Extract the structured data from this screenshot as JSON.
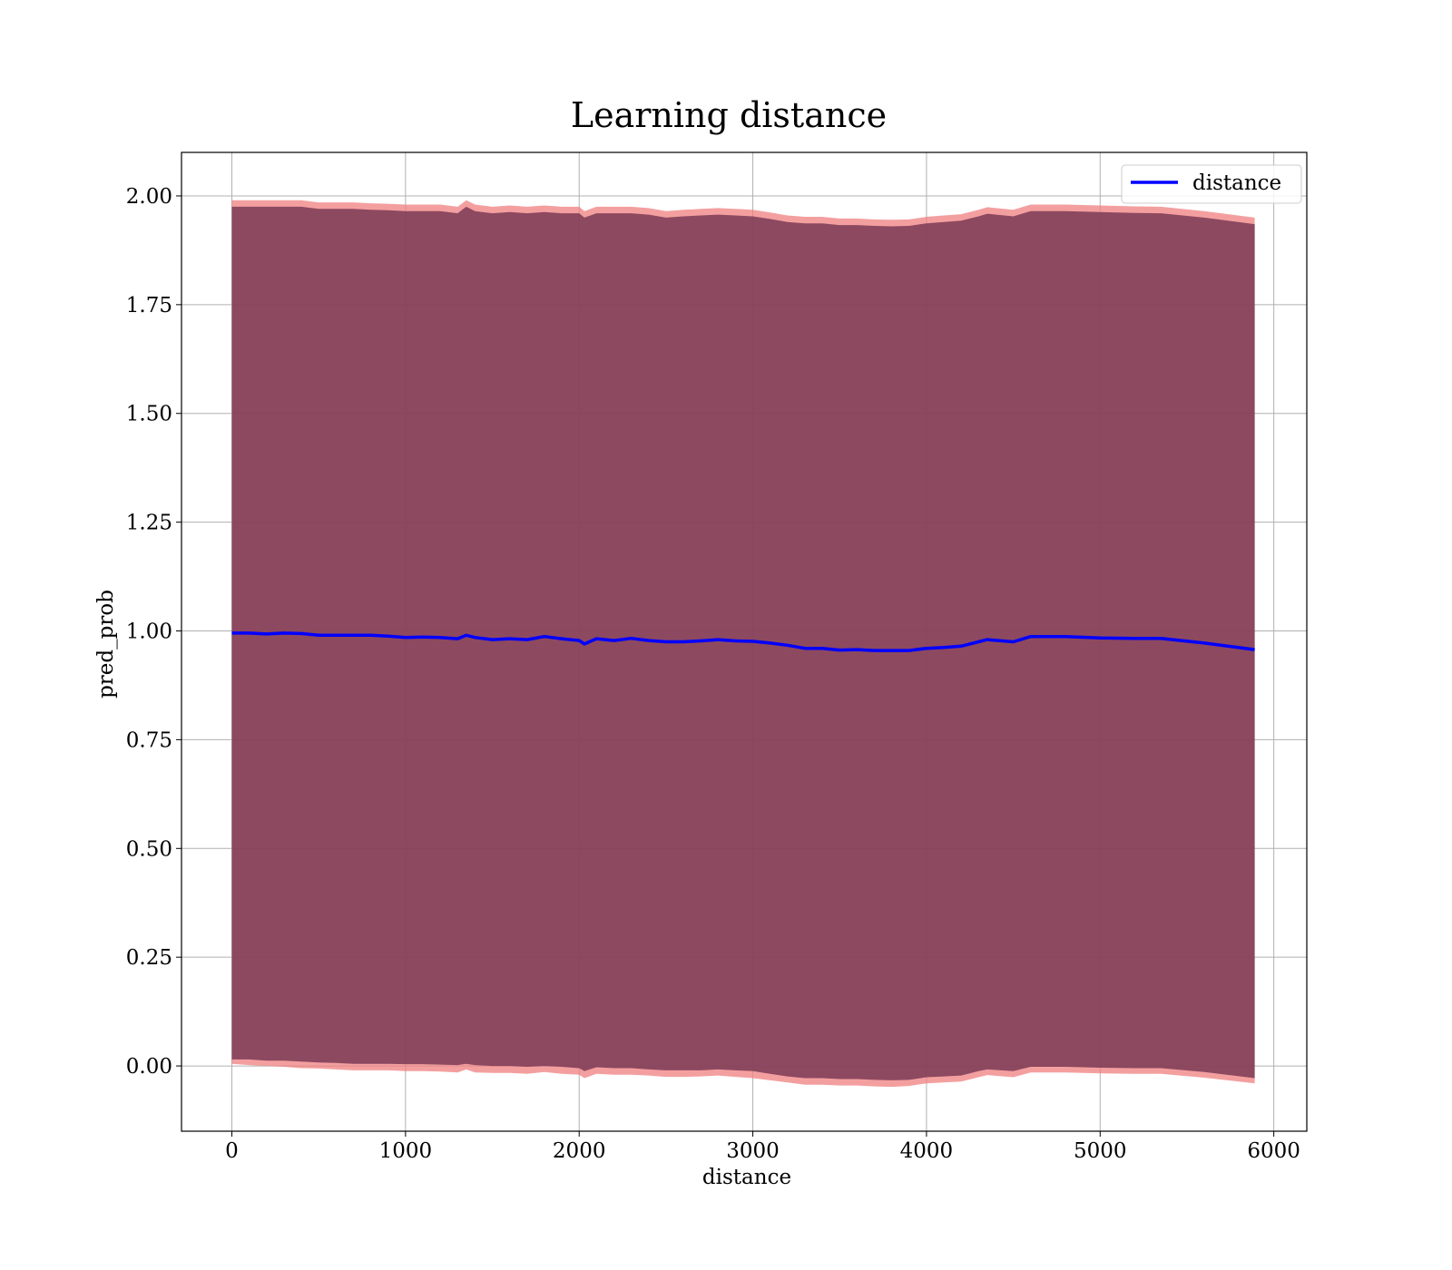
{
  "chart_data": {
    "type": "line",
    "title": "Learning distance",
    "xlabel": "distance",
    "ylabel": "pred_prob",
    "xlim": [
      -290,
      6190
    ],
    "ylim": [
      -0.15,
      2.1
    ],
    "xticks": [
      0,
      1000,
      2000,
      3000,
      4000,
      5000,
      6000
    ],
    "xtick_labels": [
      "0",
      "1000",
      "2000",
      "3000",
      "4000",
      "5000",
      "6000"
    ],
    "yticks": [
      0.0,
      0.25,
      0.5,
      0.75,
      1.0,
      1.25,
      1.5,
      1.75,
      2.0
    ],
    "ytick_labels": [
      "0.00",
      "0.25",
      "0.50",
      "0.75",
      "1.00",
      "1.25",
      "1.50",
      "1.75",
      "2.00"
    ],
    "grid": true,
    "legend": {
      "position": "top-right",
      "entries": [
        "distance"
      ]
    },
    "colors": {
      "line": "#0000ff",
      "band_outer": "#f07f7f",
      "band_inner": "#7a3a55"
    },
    "series": [
      {
        "name": "distance",
        "x": [
          0,
          100,
          200,
          300,
          400,
          500,
          600,
          700,
          800,
          900,
          1000,
          1100,
          1200,
          1300,
          1350,
          1400,
          1500,
          1600,
          1700,
          1800,
          1900,
          2000,
          2030,
          2100,
          2200,
          2300,
          2400,
          2500,
          2600,
          2700,
          2800,
          2900,
          3000,
          3100,
          3200,
          3300,
          3400,
          3500,
          3600,
          3700,
          3800,
          3900,
          4000,
          4100,
          4200,
          4300,
          4350,
          4500,
          4600,
          4800,
          5000,
          5200,
          5350,
          5600,
          5890
        ],
        "y": [
          0.995,
          0.995,
          0.993,
          0.995,
          0.994,
          0.99,
          0.99,
          0.99,
          0.99,
          0.988,
          0.985,
          0.986,
          0.985,
          0.982,
          0.99,
          0.985,
          0.98,
          0.982,
          0.98,
          0.987,
          0.982,
          0.978,
          0.97,
          0.982,
          0.978,
          0.983,
          0.978,
          0.975,
          0.975,
          0.977,
          0.98,
          0.977,
          0.976,
          0.972,
          0.967,
          0.96,
          0.96,
          0.956,
          0.957,
          0.955,
          0.955,
          0.955,
          0.96,
          0.962,
          0.965,
          0.975,
          0.98,
          0.975,
          0.987,
          0.987,
          0.984,
          0.983,
          0.983,
          0.972,
          0.957
        ]
      }
    ],
    "band": {
      "upper_outer": [
        1.99,
        1.99,
        1.99,
        1.99,
        1.99,
        1.985,
        1.985,
        1.985,
        1.983,
        1.982,
        1.98,
        1.98,
        1.98,
        1.975,
        1.99,
        1.98,
        1.975,
        1.978,
        1.975,
        1.978,
        1.975,
        1.975,
        1.965,
        1.975,
        1.975,
        1.975,
        1.972,
        1.965,
        1.968,
        1.97,
        1.972,
        1.97,
        1.968,
        1.962,
        1.955,
        1.952,
        1.952,
        1.948,
        1.948,
        1.946,
        1.945,
        1.946,
        1.952,
        1.955,
        1.958,
        1.968,
        1.974,
        1.968,
        1.98,
        1.98,
        1.978,
        1.976,
        1.975,
        1.965,
        1.95
      ],
      "upper_inner": [
        1.975,
        1.975,
        1.975,
        1.975,
        1.975,
        1.97,
        1.97,
        1.97,
        1.968,
        1.967,
        1.965,
        1.965,
        1.965,
        1.96,
        1.975,
        1.965,
        1.96,
        1.963,
        1.96,
        1.963,
        1.96,
        1.96,
        1.95,
        1.96,
        1.96,
        1.96,
        1.957,
        1.95,
        1.953,
        1.955,
        1.957,
        1.955,
        1.953,
        1.947,
        1.94,
        1.937,
        1.937,
        1.933,
        1.933,
        1.931,
        1.93,
        1.931,
        1.937,
        1.94,
        1.943,
        1.953,
        1.959,
        1.953,
        1.965,
        1.965,
        1.963,
        1.961,
        1.96,
        1.95,
        1.935
      ],
      "lower_inner": [
        0.015,
        0.015,
        0.012,
        0.012,
        0.01,
        0.008,
        0.007,
        0.005,
        0.005,
        0.005,
        0.004,
        0.004,
        0.003,
        0.002,
        0.005,
        0.002,
        0.0,
        0.0,
        -0.002,
        0.0,
        -0.002,
        -0.005,
        -0.012,
        -0.003,
        -0.005,
        -0.005,
        -0.008,
        -0.01,
        -0.01,
        -0.01,
        -0.008,
        -0.01,
        -0.012,
        -0.018,
        -0.024,
        -0.028,
        -0.028,
        -0.03,
        -0.03,
        -0.032,
        -0.033,
        -0.032,
        -0.026,
        -0.024,
        -0.022,
        -0.012,
        -0.008,
        -0.012,
        -0.002,
        -0.002,
        -0.004,
        -0.005,
        -0.005,
        -0.014,
        -0.028
      ],
      "lower_outer": [
        0.005,
        0.002,
        0.0,
        -0.002,
        -0.005,
        -0.006,
        -0.008,
        -0.01,
        -0.01,
        -0.01,
        -0.012,
        -0.012,
        -0.013,
        -0.015,
        -0.008,
        -0.015,
        -0.016,
        -0.016,
        -0.018,
        -0.014,
        -0.018,
        -0.02,
        -0.028,
        -0.018,
        -0.02,
        -0.02,
        -0.022,
        -0.025,
        -0.025,
        -0.024,
        -0.022,
        -0.025,
        -0.028,
        -0.033,
        -0.038,
        -0.043,
        -0.043,
        -0.045,
        -0.045,
        -0.047,
        -0.048,
        -0.046,
        -0.04,
        -0.038,
        -0.036,
        -0.026,
        -0.021,
        -0.026,
        -0.015,
        -0.015,
        -0.017,
        -0.018,
        -0.018,
        -0.027,
        -0.04
      ]
    }
  }
}
